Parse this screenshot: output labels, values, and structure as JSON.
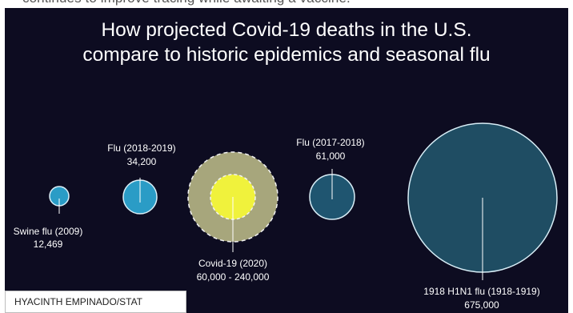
{
  "header_text": "continues to improve tracing while awaiting a vaccine.",
  "credit": "HYACINTH EMPINADO/STAT",
  "chart_data": {
    "type": "bubble",
    "title_lines": [
      "How projected Covid-19 deaths in the U.S.",
      "compare to historic epidemics and seasonal flu"
    ],
    "xlabel": "",
    "ylabel": "",
    "bubbles": [
      {
        "name": "Swine flu (2009)",
        "value_label": "12,469",
        "value": 12469,
        "color": "#2a9cc6",
        "label_pos": "below"
      },
      {
        "name": "Flu (2018-2019)",
        "value_label": "34,200",
        "value": 34200,
        "color": "#2a9cc6",
        "label_pos": "above"
      },
      {
        "name": "Covid-19 (2020)",
        "value_label": "60,000 - 240,000",
        "value_low": 60000,
        "value_high": 240000,
        "color": "#f0f23c",
        "range_color": "#a7a67c",
        "label_pos": "below"
      },
      {
        "name": "Flu (2017-2018)",
        "value_label": "61,000",
        "value": 61000,
        "color": "#1f5570",
        "label_pos": "above"
      },
      {
        "name": "1918 H1N1 flu (1918-1919)",
        "value_label": "675,000",
        "value": 675000,
        "color": "#1f4d63",
        "label_pos": "below"
      }
    ]
  }
}
